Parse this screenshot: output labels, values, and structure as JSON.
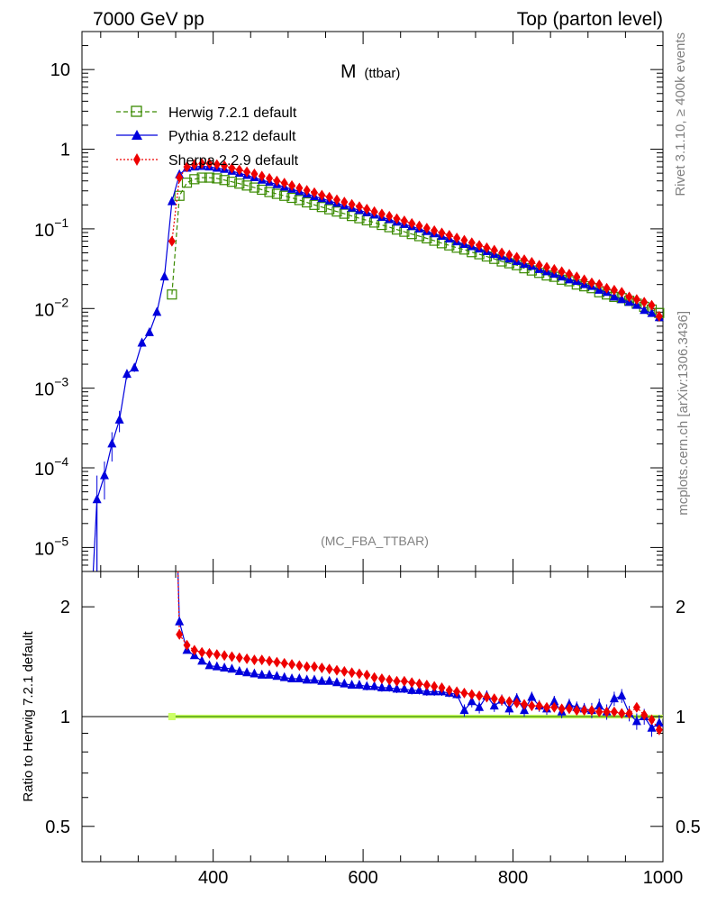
{
  "header": {
    "left": "7000 GeV pp",
    "right": "Top (parton level)"
  },
  "side": {
    "right_top": "Rivet 3.1.10, ≥ 400k events",
    "right_bottom": "mcplots.cern.ch [arXiv:1306.3436]"
  },
  "colors": {
    "herwig": "#3a8a00",
    "pythia": "#0000dd",
    "sherpa": "#ee0000",
    "band": "#ccff66",
    "frame": "#000000",
    "gray_text": "#808080"
  },
  "chart_data": [
    {
      "type": "line",
      "panel": "main",
      "title_main": "M",
      "title_sub": "(ttbar)",
      "annotation": "(MC_FBA_TTBAR)",
      "yscale": "log",
      "xlim": [
        225,
        1000
      ],
      "ylim": [
        5e-06,
        30
      ],
      "y_ticks": [
        {
          "value": 10,
          "label": "10"
        },
        {
          "value": 1,
          "label": "1"
        },
        {
          "value": 0.1,
          "base": "10",
          "exp": "−1"
        },
        {
          "value": 0.01,
          "base": "10",
          "exp": "−2"
        },
        {
          "value": 0.001,
          "base": "10",
          "exp": "−3"
        },
        {
          "value": 0.0001,
          "base": "10",
          "exp": "−4"
        },
        {
          "value": 1e-05,
          "base": "10",
          "exp": "−5"
        }
      ],
      "legend": {
        "position": "top-left",
        "entries": [
          {
            "key": "herwig",
            "label": "Herwig 7.2.1 default"
          },
          {
            "key": "pythia",
            "label": "Pythia 8.212 default"
          },
          {
            "key": "sherpa",
            "label": "Sherpa 2.2.9 default"
          }
        ]
      },
      "series": [
        {
          "key": "herwig",
          "name": "Herwig 7.2.1 default",
          "x": [
            345,
            355,
            365,
            375,
            385,
            395,
            405,
            415,
            425,
            435,
            445,
            455,
            465,
            475,
            485,
            495,
            505,
            515,
            525,
            535,
            545,
            555,
            565,
            575,
            585,
            595,
            605,
            615,
            625,
            635,
            645,
            655,
            665,
            675,
            685,
            695,
            705,
            715,
            725,
            735,
            745,
            755,
            765,
            775,
            785,
            795,
            805,
            815,
            825,
            835,
            845,
            855,
            865,
            875,
            885,
            895,
            905,
            915,
            925,
            935,
            945,
            955,
            965,
            975,
            985,
            995
          ],
          "y": [
            0.015,
            0.26,
            0.38,
            0.42,
            0.44,
            0.44,
            0.43,
            0.41,
            0.39,
            0.37,
            0.35,
            0.33,
            0.31,
            0.29,
            0.275,
            0.26,
            0.245,
            0.23,
            0.215,
            0.2,
            0.188,
            0.176,
            0.165,
            0.155,
            0.145,
            0.136,
            0.128,
            0.12,
            0.112,
            0.105,
            0.098,
            0.092,
            0.086,
            0.081,
            0.076,
            0.071,
            0.066,
            0.062,
            0.058,
            0.055,
            0.051,
            0.048,
            0.045,
            0.042,
            0.039,
            0.037,
            0.035,
            0.032,
            0.03,
            0.028,
            0.026,
            0.025,
            0.023,
            0.022,
            0.02,
            0.019,
            0.018,
            0.016,
            0.015,
            0.014,
            0.0135,
            0.0125,
            0.0115,
            0.0105,
            0.0097,
            0.0088
          ]
        },
        {
          "key": "pythia",
          "name": "Pythia 8.212 default",
          "x": [
            245,
            255,
            265,
            275,
            285,
            295,
            305,
            315,
            325,
            335,
            345,
            355,
            365,
            375,
            385,
            395,
            405,
            415,
            425,
            435,
            445,
            455,
            465,
            475,
            485,
            495,
            505,
            515,
            525,
            535,
            545,
            555,
            565,
            575,
            585,
            595,
            605,
            615,
            625,
            635,
            645,
            655,
            665,
            675,
            685,
            695,
            705,
            715,
            725,
            735,
            745,
            755,
            765,
            775,
            785,
            795,
            805,
            815,
            825,
            835,
            845,
            855,
            865,
            875,
            885,
            895,
            905,
            915,
            925,
            935,
            945,
            955,
            965,
            975,
            985,
            995
          ],
          "y": [
            4e-05,
            8e-05,
            0.0002,
            0.0004,
            0.0015,
            0.0018,
            0.0037,
            0.005,
            0.009,
            0.025,
            0.22,
            0.48,
            0.58,
            0.6,
            0.61,
            0.6,
            0.58,
            0.56,
            0.53,
            0.5,
            0.47,
            0.44,
            0.41,
            0.385,
            0.36,
            0.335,
            0.315,
            0.295,
            0.275,
            0.255,
            0.24,
            0.225,
            0.21,
            0.196,
            0.183,
            0.171,
            0.16,
            0.15,
            0.14,
            0.131,
            0.122,
            0.114,
            0.107,
            0.1,
            0.093,
            0.087,
            0.081,
            0.075,
            0.069,
            0.064,
            0.06,
            0.056,
            0.052,
            0.048,
            0.045,
            0.042,
            0.039,
            0.036,
            0.034,
            0.031,
            0.029,
            0.027,
            0.025,
            0.023,
            0.022,
            0.02,
            0.019,
            0.017,
            0.016,
            0.014,
            0.013,
            0.012,
            0.011,
            0.0095,
            0.0087,
            0.0077
          ],
          "yerr": [
            4e-05,
            4e-05,
            8e-05,
            0.00012,
            0.0002,
            0.0002,
            0.0004,
            0.0005,
            0.0007,
            0.002,
            0.01,
            0.01,
            0.01,
            0.01,
            0.01,
            0.01,
            0.01,
            0.01,
            0.01,
            0.01,
            0.005,
            0.005,
            0.005,
            0.005,
            0.005,
            0.005,
            0.005,
            0.005,
            0.005,
            0.005,
            0.003,
            0.003,
            0.003,
            0.003,
            0.003,
            0.003,
            0.003,
            0.003,
            0.003,
            0.003,
            0.002,
            0.002,
            0.002,
            0.002,
            0.002,
            0.002,
            0.002,
            0.002,
            0.002,
            0.002,
            0.001,
            0.001,
            0.001,
            0.001,
            0.001,
            0.001,
            0.001,
            0.001,
            0.001,
            0.001,
            0.0008,
            0.0008,
            0.0008,
            0.0008,
            0.0008,
            0.0008,
            0.0008,
            0.0008,
            0.0008,
            0.0008,
            0.0006,
            0.0006,
            0.0006,
            0.0006,
            0.0006,
            0.0006
          ]
        },
        {
          "key": "sherpa",
          "name": "Sherpa 2.2.9 default",
          "x": [
            345,
            355,
            365,
            375,
            385,
            395,
            405,
            415,
            425,
            435,
            445,
            455,
            465,
            475,
            485,
            495,
            505,
            515,
            525,
            535,
            545,
            555,
            565,
            575,
            585,
            595,
            605,
            615,
            625,
            635,
            645,
            655,
            665,
            675,
            685,
            695,
            705,
            715,
            725,
            735,
            745,
            755,
            765,
            775,
            785,
            795,
            805,
            815,
            825,
            835,
            845,
            855,
            865,
            875,
            885,
            895,
            905,
            915,
            925,
            935,
            945,
            955,
            965,
            975,
            985,
            995
          ],
          "y": [
            0.07,
            0.44,
            0.6,
            0.64,
            0.66,
            0.66,
            0.64,
            0.62,
            0.58,
            0.55,
            0.52,
            0.49,
            0.46,
            0.43,
            0.4,
            0.375,
            0.35,
            0.325,
            0.305,
            0.285,
            0.265,
            0.25,
            0.232,
            0.217,
            0.203,
            0.19,
            0.177,
            0.165,
            0.154,
            0.144,
            0.134,
            0.126,
            0.117,
            0.109,
            0.102,
            0.095,
            0.089,
            0.083,
            0.077,
            0.072,
            0.067,
            0.062,
            0.058,
            0.054,
            0.05,
            0.047,
            0.044,
            0.041,
            0.038,
            0.035,
            0.033,
            0.031,
            0.029,
            0.027,
            0.025,
            0.023,
            0.021,
            0.02,
            0.018,
            0.017,
            0.016,
            0.014,
            0.013,
            0.012,
            0.011,
            0.008
          ]
        }
      ]
    },
    {
      "type": "line",
      "panel": "ratio",
      "ylabel": "Ratio to Herwig 7.2.1 default",
      "xlim": [
        225,
        1000
      ],
      "ylim": [
        0.4,
        2.5
      ],
      "yscale": "log",
      "y_ticks": [
        {
          "value": 2,
          "label": "2"
        },
        {
          "value": 1,
          "label": "1"
        },
        {
          "value": 0.5,
          "label": "0.5"
        }
      ],
      "x_ticks": [
        {
          "value": 400,
          "label": "400"
        },
        {
          "value": 600,
          "label": "600"
        },
        {
          "value": 800,
          "label": "800"
        },
        {
          "value": 1000,
          "label": "1000"
        }
      ],
      "series": [
        {
          "key": "pythia",
          "name": "Pythia 8.212 default",
          "x": [
            355,
            365,
            375,
            385,
            395,
            405,
            415,
            425,
            435,
            445,
            455,
            465,
            475,
            485,
            495,
            505,
            515,
            525,
            535,
            545,
            555,
            565,
            575,
            585,
            595,
            605,
            615,
            625,
            635,
            645,
            655,
            665,
            675,
            685,
            695,
            705,
            715,
            725,
            735,
            745,
            755,
            765,
            775,
            785,
            795,
            805,
            815,
            825,
            835,
            845,
            855,
            865,
            875,
            885,
            895,
            905,
            915,
            925,
            935,
            945,
            955,
            965,
            975,
            985,
            995
          ],
          "y": [
            1.82,
            1.52,
            1.47,
            1.42,
            1.38,
            1.37,
            1.36,
            1.35,
            1.33,
            1.32,
            1.31,
            1.3,
            1.3,
            1.29,
            1.28,
            1.27,
            1.27,
            1.26,
            1.26,
            1.25,
            1.25,
            1.24,
            1.23,
            1.22,
            1.22,
            1.21,
            1.21,
            1.2,
            1.2,
            1.19,
            1.19,
            1.18,
            1.18,
            1.17,
            1.17,
            1.17,
            1.16,
            1.15,
            1.04,
            1.1,
            1.06,
            1.14,
            1.07,
            1.11,
            1.05,
            1.12,
            1.04,
            1.13,
            1.07,
            1.05,
            1.1,
            1.03,
            1.08,
            1.06,
            1.05,
            1.04,
            1.07,
            1.03,
            1.12,
            1.14,
            1.02,
            0.97,
            1.0,
            0.93,
            0.96
          ],
          "yerr": [
            0.03,
            0.02,
            0.02,
            0.02,
            0.02,
            0.02,
            0.02,
            0.02,
            0.02,
            0.02,
            0.02,
            0.02,
            0.02,
            0.02,
            0.02,
            0.02,
            0.02,
            0.02,
            0.02,
            0.02,
            0.02,
            0.02,
            0.02,
            0.02,
            0.03,
            0.03,
            0.03,
            0.03,
            0.03,
            0.03,
            0.03,
            0.03,
            0.03,
            0.03,
            0.03,
            0.03,
            0.03,
            0.03,
            0.04,
            0.04,
            0.04,
            0.04,
            0.04,
            0.04,
            0.04,
            0.04,
            0.04,
            0.04,
            0.04,
            0.04,
            0.04,
            0.04,
            0.04,
            0.04,
            0.04,
            0.05,
            0.05,
            0.05,
            0.05,
            0.05,
            0.05,
            0.05,
            0.05,
            0.05,
            0.05
          ]
        },
        {
          "key": "sherpa",
          "name": "Sherpa 2.2.9 default",
          "x": [
            355,
            365,
            375,
            385,
            395,
            405,
            415,
            425,
            435,
            445,
            455,
            465,
            475,
            485,
            495,
            505,
            515,
            525,
            535,
            545,
            555,
            565,
            575,
            585,
            595,
            605,
            615,
            625,
            635,
            645,
            655,
            665,
            675,
            685,
            695,
            705,
            715,
            725,
            735,
            745,
            755,
            765,
            775,
            785,
            795,
            805,
            815,
            825,
            835,
            845,
            855,
            865,
            875,
            885,
            895,
            905,
            915,
            925,
            935,
            945,
            955,
            965,
            975,
            985,
            995
          ],
          "y": [
            1.68,
            1.57,
            1.52,
            1.5,
            1.49,
            1.48,
            1.47,
            1.46,
            1.45,
            1.44,
            1.43,
            1.43,
            1.42,
            1.41,
            1.4,
            1.39,
            1.38,
            1.37,
            1.37,
            1.36,
            1.35,
            1.34,
            1.33,
            1.32,
            1.31,
            1.3,
            1.28,
            1.27,
            1.26,
            1.25,
            1.25,
            1.24,
            1.23,
            1.22,
            1.21,
            1.2,
            1.18,
            1.17,
            1.16,
            1.15,
            1.14,
            1.13,
            1.12,
            1.11,
            1.1,
            1.09,
            1.08,
            1.07,
            1.07,
            1.06,
            1.06,
            1.05,
            1.05,
            1.04,
            1.04,
            1.04,
            1.03,
            1.03,
            1.03,
            1.02,
            1.02,
            1.06,
            1.01,
            0.98,
            0.92
          ],
          "yerr": [
            0.02,
            0.02,
            0.02,
            0.02,
            0.02,
            0.02,
            0.02,
            0.02,
            0.02,
            0.02,
            0.02,
            0.02,
            0.02,
            0.02,
            0.02,
            0.02,
            0.02,
            0.02,
            0.02,
            0.02,
            0.02,
            0.02,
            0.02,
            0.02,
            0.02,
            0.02,
            0.02,
            0.02,
            0.02,
            0.02,
            0.02,
            0.02,
            0.02,
            0.02,
            0.02,
            0.02,
            0.02,
            0.02,
            0.02,
            0.02,
            0.02,
            0.02,
            0.02,
            0.02,
            0.02,
            0.02,
            0.02,
            0.02,
            0.02,
            0.02,
            0.02,
            0.02,
            0.02,
            0.02,
            0.02,
            0.02,
            0.02,
            0.02,
            0.02,
            0.02,
            0.02,
            0.03,
            0.03,
            0.03,
            0.03
          ]
        }
      ]
    }
  ]
}
